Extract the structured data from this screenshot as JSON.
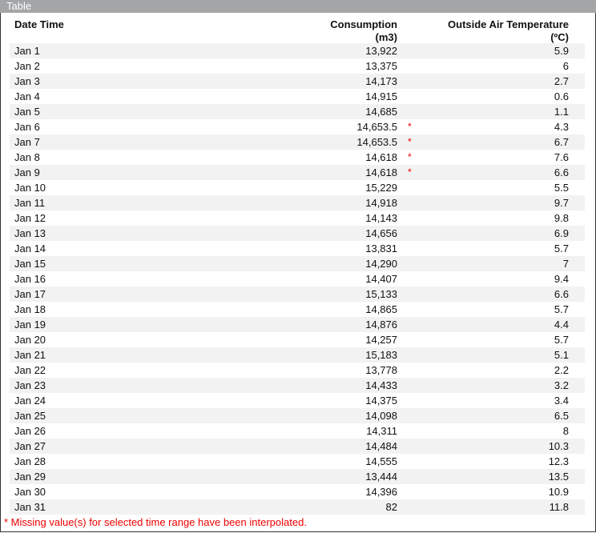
{
  "panel": {
    "title": "Table"
  },
  "table": {
    "columns": [
      {
        "label": "Date Time"
      },
      {
        "label_line1": "Consumption",
        "label_line2": "(m3)"
      },
      {
        "label_line1": "Outside Air Temperature",
        "label_line2": "(ºC)"
      }
    ],
    "rows": [
      {
        "date": "Jan 1",
        "consumption": "13,922",
        "interpolated": false,
        "temperature": "5.9"
      },
      {
        "date": "Jan 2",
        "consumption": "13,375",
        "interpolated": false,
        "temperature": "6"
      },
      {
        "date": "Jan 3",
        "consumption": "14,173",
        "interpolated": false,
        "temperature": "2.7"
      },
      {
        "date": "Jan 4",
        "consumption": "14,915",
        "interpolated": false,
        "temperature": "0.6"
      },
      {
        "date": "Jan 5",
        "consumption": "14,685",
        "interpolated": false,
        "temperature": "1.1"
      },
      {
        "date": "Jan 6",
        "consumption": "14,653.5",
        "interpolated": true,
        "temperature": "4.3"
      },
      {
        "date": "Jan 7",
        "consumption": "14,653.5",
        "interpolated": true,
        "temperature": "6.7"
      },
      {
        "date": "Jan 8",
        "consumption": "14,618",
        "interpolated": true,
        "temperature": "7.6"
      },
      {
        "date": "Jan 9",
        "consumption": "14,618",
        "interpolated": true,
        "temperature": "6.6"
      },
      {
        "date": "Jan 10",
        "consumption": "15,229",
        "interpolated": false,
        "temperature": "5.5"
      },
      {
        "date": "Jan 11",
        "consumption": "14,918",
        "interpolated": false,
        "temperature": "9.7"
      },
      {
        "date": "Jan 12",
        "consumption": "14,143",
        "interpolated": false,
        "temperature": "9.8"
      },
      {
        "date": "Jan 13",
        "consumption": "14,656",
        "interpolated": false,
        "temperature": "6.9"
      },
      {
        "date": "Jan 14",
        "consumption": "13,831",
        "interpolated": false,
        "temperature": "5.7"
      },
      {
        "date": "Jan 15",
        "consumption": "14,290",
        "interpolated": false,
        "temperature": "7"
      },
      {
        "date": "Jan 16",
        "consumption": "14,407",
        "interpolated": false,
        "temperature": "9.4"
      },
      {
        "date": "Jan 17",
        "consumption": "15,133",
        "interpolated": false,
        "temperature": "6.6"
      },
      {
        "date": "Jan 18",
        "consumption": "14,865",
        "interpolated": false,
        "temperature": "5.7"
      },
      {
        "date": "Jan 19",
        "consumption": "14,876",
        "interpolated": false,
        "temperature": "4.4"
      },
      {
        "date": "Jan 20",
        "consumption": "14,257",
        "interpolated": false,
        "temperature": "5.7"
      },
      {
        "date": "Jan 21",
        "consumption": "15,183",
        "interpolated": false,
        "temperature": "5.1"
      },
      {
        "date": "Jan 22",
        "consumption": "13,778",
        "interpolated": false,
        "temperature": "2.2"
      },
      {
        "date": "Jan 23",
        "consumption": "14,433",
        "interpolated": false,
        "temperature": "3.2"
      },
      {
        "date": "Jan 24",
        "consumption": "14,375",
        "interpolated": false,
        "temperature": "3.4"
      },
      {
        "date": "Jan 25",
        "consumption": "14,098",
        "interpolated": false,
        "temperature": "6.5"
      },
      {
        "date": "Jan 26",
        "consumption": "14,311",
        "interpolated": false,
        "temperature": "8"
      },
      {
        "date": "Jan 27",
        "consumption": "14,484",
        "interpolated": false,
        "temperature": "10.3"
      },
      {
        "date": "Jan 28",
        "consumption": "14,555",
        "interpolated": false,
        "temperature": "12.3"
      },
      {
        "date": "Jan 29",
        "consumption": "13,444",
        "interpolated": false,
        "temperature": "13.5"
      },
      {
        "date": "Jan 30",
        "consumption": "14,396",
        "interpolated": false,
        "temperature": "10.9"
      },
      {
        "date": "Jan 31",
        "consumption": "82",
        "interpolated": false,
        "temperature": "11.8"
      }
    ],
    "interpolated_marker": "*"
  },
  "footnote": "* Missing value(s) for selected time range have been interpolated.",
  "colors": {
    "titlebar": "#a3a5a7",
    "stripe": "#f2f2f2",
    "warning": "#ee0000"
  }
}
